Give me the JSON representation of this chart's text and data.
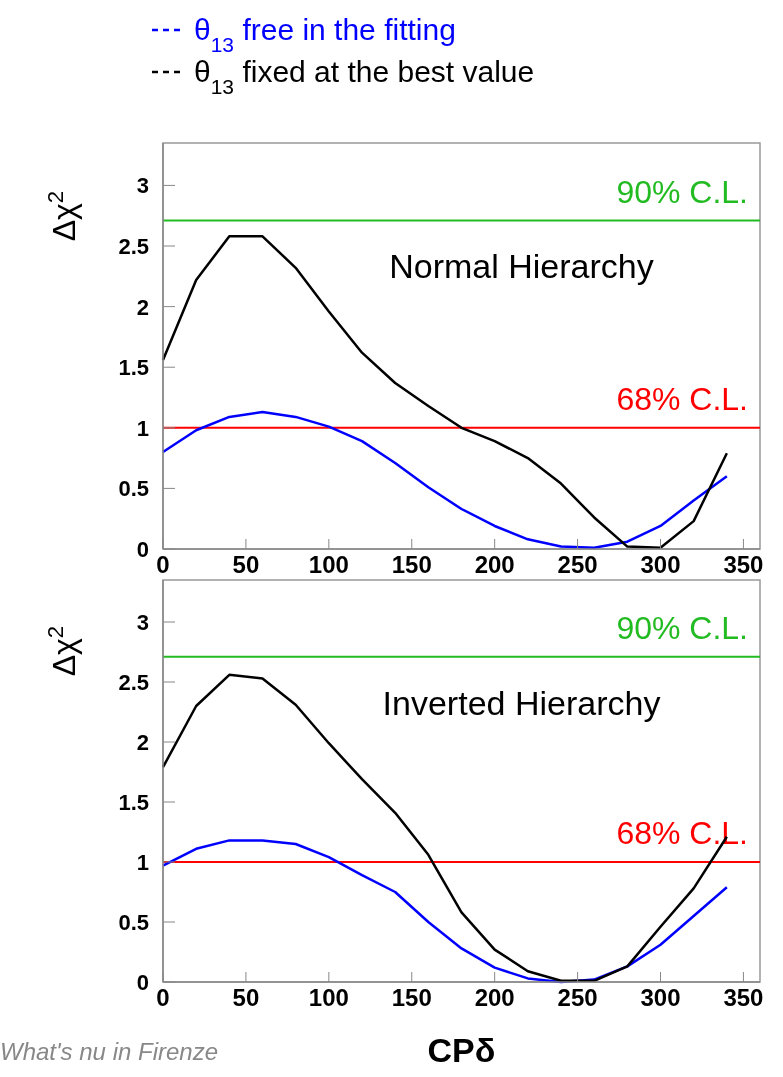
{
  "chart_data": [
    {
      "type": "line",
      "xlim": [
        0,
        360
      ],
      "xticks": [
        0,
        50,
        100,
        150,
        200,
        250,
        300,
        350
      ],
      "ylim": [
        0,
        3.35
      ],
      "yticks": [
        0,
        0.5,
        1,
        1.5,
        2,
        2.5,
        3
      ],
      "ylabel": "Δχ$^{2}$",
      "legend": "top",
      "grid": false,
      "marker": "none",
      "x": [
        0,
        20,
        40,
        60,
        80,
        100,
        120,
        140,
        160,
        180,
        200,
        220,
        240,
        260,
        280,
        300,
        320,
        340
      ],
      "annotations": [
        "Normal Hierarchy"
      ],
      "ref_lines": [
        {
          "axis": "y",
          "value": 2.71,
          "label": "90% C.L.",
          "color": "#22bb22"
        },
        {
          "axis": "y",
          "value": 1,
          "label": "68% C.L.",
          "color": "#ff0000"
        }
      ],
      "series": [
        {
          "name": "θ$_{13}$ free in the fitting",
          "color": "#0000ff",
          "values": [
            0.8,
            0.98,
            1.09,
            1.13,
            1.09,
            1.01,
            0.89,
            0.71,
            0.51,
            0.33,
            0.19,
            0.08,
            0.02,
            0.01,
            0.06,
            0.19,
            0.4,
            0.6
          ]
        },
        {
          "name": "θ$_{13}$ fixed at the best value",
          "color": "#000000",
          "values": [
            1.56,
            2.22,
            2.58,
            2.58,
            2.32,
            1.96,
            1.62,
            1.37,
            1.18,
            1.0,
            0.89,
            0.75,
            0.54,
            0.26,
            0.02,
            0.01,
            0.23,
            0.79
          ]
        }
      ]
    },
    {
      "type": "line",
      "xlim": [
        0,
        360
      ],
      "xticks": [
        0,
        50,
        100,
        150,
        200,
        250,
        300,
        350
      ],
      "ylim": [
        0,
        3.35
      ],
      "yticks": [
        0,
        0.5,
        1,
        1.5,
        2,
        2.5,
        3
      ],
      "ylabel": "Δχ$^{2}$",
      "xlabel": "CPδ",
      "grid": false,
      "marker": "none",
      "x": [
        0,
        20,
        40,
        60,
        80,
        100,
        120,
        140,
        160,
        180,
        200,
        220,
        240,
        260,
        280,
        300,
        320,
        340
      ],
      "annotations": [
        "Inverted Hierarchy",
        "What's nu in Firenze"
      ],
      "ref_lines": [
        {
          "axis": "y",
          "value": 2.71,
          "label": "90% C.L.",
          "color": "#22bb22"
        },
        {
          "axis": "y",
          "value": 1,
          "label": "68% C.L.",
          "color": "#ff0000"
        }
      ],
      "series": [
        {
          "color": "#0000ff",
          "values": [
            0.97,
            1.11,
            1.18,
            1.18,
            1.15,
            1.04,
            0.89,
            0.75,
            0.5,
            0.28,
            0.12,
            0.03,
            0.0,
            0.02,
            0.13,
            0.31,
            0.55,
            0.79
          ]
        },
        {
          "color": "#000000",
          "values": [
            1.79,
            2.3,
            2.56,
            2.53,
            2.31,
            1.99,
            1.69,
            1.41,
            1.06,
            0.58,
            0.27,
            0.09,
            0.01,
            0.01,
            0.13,
            0.46,
            0.78,
            1.21
          ]
        }
      ]
    }
  ]
}
